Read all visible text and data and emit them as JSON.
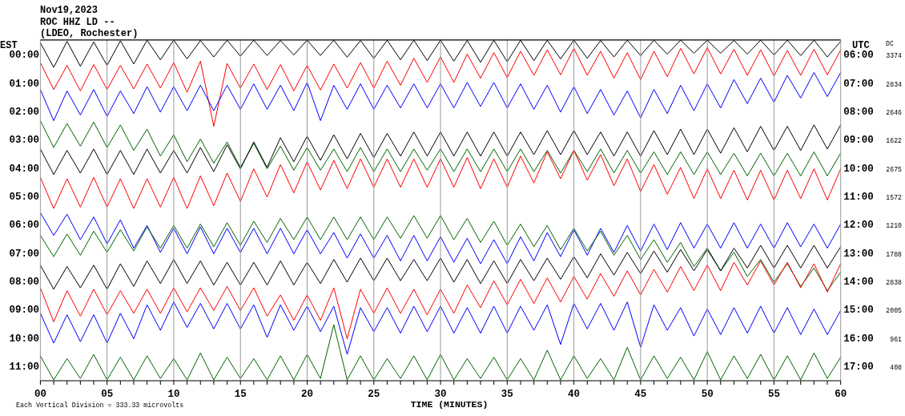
{
  "chart_data": {
    "type": "line",
    "title": "Nov19,2023",
    "subtitle": "ROC HHZ LD --",
    "xlabel": "TIME (MINUTES)",
    "ylabel": "EST",
    "y2label": "UTC",
    "annotations": [
      "(LDEO, Rochester)",
      "Each Vertical Division = 333.33 microvolts",
      "DC",
      "3374",
      "2834",
      "2646",
      "1622",
      "2675",
      "1572",
      "1210",
      "1788",
      "2838",
      "2005",
      "961",
      "408"
    ],
    "x": [
      0,
      1,
      2,
      3,
      4,
      5,
      6,
      7,
      8,
      9,
      10,
      11,
      12,
      13,
      14,
      15,
      16,
      17,
      18,
      19,
      20,
      21,
      22,
      23,
      24,
      25,
      26,
      27,
      28,
      29,
      30,
      31,
      32,
      33,
      34,
      35,
      36,
      37,
      38,
      39,
      40,
      41,
      42,
      43,
      44,
      45,
      46,
      47,
      48,
      49,
      50,
      51,
      52,
      53,
      54,
      55,
      56,
      57,
      58,
      59,
      60
    ],
    "xlim": [
      0,
      60
    ],
    "xticks": [
      {
        "value": 0,
        "label": "00"
      },
      {
        "value": 1,
        "label": null
      },
      {
        "value": 2,
        "label": null
      },
      {
        "value": 3,
        "label": null
      },
      {
        "value": 4,
        "label": null
      },
      {
        "value": 5,
        "label": "05"
      },
      {
        "value": 6,
        "label": null
      },
      {
        "value": 7,
        "label": null
      },
      {
        "value": 8,
        "label": null
      },
      {
        "value": 9,
        "label": null
      },
      10,
      {
        "value": 11,
        "label": null
      },
      {
        "value": 12,
        "label": null
      },
      {
        "value": 13,
        "label": null
      },
      {
        "value": 14,
        "label": null
      },
      15,
      {
        "value": 16,
        "label": null
      },
      {
        "value": 17,
        "label": null
      },
      {
        "value": 18,
        "label": null
      },
      {
        "value": 19,
        "label": null
      },
      20,
      {
        "value": 21,
        "label": null
      },
      {
        "value": 22,
        "label": null
      },
      {
        "value": 23,
        "label": null
      },
      {
        "value": 24,
        "label": null
      },
      25,
      {
        "value": 26,
        "label": null
      },
      {
        "value": 27,
        "label": null
      },
      {
        "value": 28,
        "label": null
      },
      {
        "value": 29,
        "label": null
      },
      30,
      {
        "value": 31,
        "label": null
      },
      {
        "value": 32,
        "label": null
      },
      {
        "value": 33,
        "label": null
      },
      {
        "value": 34,
        "label": null
      },
      35,
      {
        "value": 36,
        "label": null
      },
      {
        "value": 37,
        "label": null
      },
      {
        "value": 38,
        "label": null
      },
      {
        "value": 39,
        "label": null
      },
      40,
      {
        "value": 41,
        "label": null
      },
      {
        "value": 42,
        "label": null
      },
      {
        "value": 43,
        "label": null
      },
      {
        "value": 44,
        "label": null
      },
      45,
      {
        "value": 46,
        "label": null
      },
      {
        "value": 47,
        "label": null
      },
      {
        "value": 48,
        "label": null
      },
      {
        "value": 49,
        "label": null
      },
      50,
      {
        "value": 51,
        "label": null
      },
      {
        "value": 52,
        "label": null
      },
      {
        "value": 53,
        "label": null
      },
      {
        "value": 54,
        "label": null
      },
      55,
      {
        "value": 56,
        "label": null
      },
      {
        "value": 57,
        "label": null
      },
      {
        "value": 58,
        "label": null
      },
      {
        "value": 59,
        "label": null
      },
      60
    ],
    "ylim": [
      11.48,
      -0.55
    ],
    "yticks": [
      {
        "value": 0,
        "label": "00:00"
      },
      {
        "value": 1,
        "label": "01:00"
      },
      {
        "value": 2,
        "label": "02:00"
      },
      {
        "value": 3,
        "label": "03:00"
      },
      {
        "value": 4,
        "label": "04:00"
      },
      {
        "value": 5,
        "label": "05:00"
      },
      {
        "value": 6,
        "label": "06:00"
      },
      {
        "value": 7,
        "label": "07:00"
      },
      {
        "value": 8,
        "label": "08:00"
      },
      {
        "value": 9,
        "label": "09:00"
      },
      {
        "value": 10,
        "label": "10:00"
      },
      {
        "value": 11,
        "label": "11:00"
      }
    ],
    "y2lim": [
      17.48,
      5.45
    ],
    "y2ticks": [
      {
        "value": 6,
        "label": "06:00"
      },
      {
        "value": 7,
        "label": "07:00"
      },
      {
        "value": 8,
        "label": "08:00"
      },
      {
        "value": 9,
        "label": "09:00"
      },
      {
        "value": 10,
        "label": "10:00"
      },
      {
        "value": 11,
        "label": "11:00"
      },
      {
        "value": 12,
        "label": "12:00"
      },
      {
        "value": 13,
        "label": "13:00"
      },
      {
        "value": 14,
        "label": "14:00"
      },
      {
        "value": 15,
        "label": "15:00"
      },
      {
        "value": 16,
        "label": "16:00"
      },
      {
        "value": 17,
        "label": "17:00"
      }
    ],
    "grid": "x",
    "series": [
      {
        "color": "#000000",
        "values": [
          -0.45,
          0.42,
          -0.5,
          0.38,
          -0.48,
          0.35,
          -0.52,
          0.3,
          -0.54,
          0.15,
          -0.54,
          0.12,
          -0.53,
          0.05,
          -0.54,
          0.02,
          -0.54,
          0,
          -0.53,
          -0.02,
          -0.54,
          0,
          -0.54,
          0.06,
          -0.53,
          0.1,
          -0.54,
          0.15,
          -0.54,
          0.18,
          -0.54,
          0.2,
          -0.53,
          0.24,
          -0.54,
          0.22,
          -0.54,
          0.18,
          -0.54,
          0.12,
          -0.54,
          0.1,
          -0.53,
          0.05,
          -0.54,
          0,
          -0.54,
          -0.05,
          -0.54,
          -0.08,
          -0.54,
          -0.08,
          -0.53,
          -0.05,
          -0.54,
          -0.02,
          -0.54,
          0,
          -0.54,
          0.05,
          -0.5
        ]
      },
      {
        "color": "#ff0000",
        "values": [
          0.25,
          1.2,
          0.35,
          1.25,
          0.32,
          1.2,
          0.35,
          1.18,
          0.3,
          1.15,
          0.25,
          1.3,
          0.2,
          2.5,
          0.28,
          1.15,
          0.3,
          1.2,
          0.32,
          1.25,
          0.35,
          1.22,
          0.3,
          1.15,
          0.25,
          1.15,
          0.2,
          1.05,
          0.1,
          0.95,
          0.05,
          0.95,
          -0.05,
          0.8,
          -0.1,
          0.78,
          -0.15,
          0.7,
          -0.2,
          0.68,
          -0.25,
          0.7,
          -0.15,
          0.8,
          -0.1,
          0.85,
          -0.15,
          0.75,
          -0.25,
          0.65,
          -0.28,
          0.65,
          -0.22,
          0.7,
          -0.2,
          0.72,
          -0.18,
          0.7,
          -0.22,
          0.68,
          -0.2
        ]
      },
      {
        "color": "#0000ff",
        "values": [
          1.2,
          2.3,
          1.25,
          2.1,
          1.2,
          2.15,
          1.25,
          2.05,
          1.1,
          2.0,
          1.1,
          1.95,
          1.05,
          1.95,
          1.05,
          1.9,
          1.0,
          1.9,
          1.05,
          1.95,
          0.95,
          2.3,
          1.05,
          1.9,
          1.0,
          1.9,
          1.05,
          1.85,
          1.0,
          1.85,
          1.0,
          1.85,
          0.95,
          1.8,
          0.95,
          1.85,
          1.0,
          1.9,
          1.05,
          2.0,
          1.1,
          2.05,
          1.2,
          2.1,
          1.25,
          2.2,
          1.2,
          2.05,
          1.05,
          1.95,
          1.0,
          1.85,
          0.85,
          1.7,
          0.8,
          1.65,
          0.7,
          1.5,
          0.6,
          1.45,
          0.6
        ]
      },
      {
        "color": "#006400",
        "values": [
          2.3,
          3.25,
          2.4,
          3.2,
          2.35,
          3.25,
          2.45,
          3.35,
          2.6,
          3.55,
          2.8,
          3.75,
          2.95,
          3.8,
          3.05,
          3.95,
          3.1,
          4.0,
          3.2,
          4.05,
          3.25,
          4.05,
          3.3,
          4.1,
          3.25,
          4.1,
          3.3,
          4.1,
          3.3,
          4.05,
          3.3,
          4.1,
          3.3,
          4.1,
          3.3,
          4.1,
          3.3,
          4.1,
          3.35,
          4.15,
          3.35,
          4.1,
          3.3,
          4.15,
          3.35,
          4.15,
          3.4,
          4.2,
          3.4,
          4.2,
          3.4,
          4.2,
          3.45,
          4.25,
          3.45,
          4.25,
          3.45,
          4.25,
          3.4,
          4.25,
          3.45
        ]
      },
      {
        "color": "#000000",
        "values": [
          3.3,
          4.2,
          3.35,
          4.15,
          3.3,
          4.2,
          3.35,
          4.2,
          3.3,
          4.15,
          3.35,
          4.15,
          3.25,
          4.1,
          3.15,
          4.0,
          3.05,
          3.95,
          2.9,
          3.75,
          2.85,
          3.7,
          2.8,
          3.65,
          2.75,
          3.6,
          2.75,
          3.55,
          2.7,
          3.55,
          2.7,
          3.55,
          2.7,
          3.55,
          2.7,
          3.55,
          2.7,
          3.5,
          2.65,
          3.5,
          2.65,
          3.5,
          2.7,
          3.55,
          2.7,
          3.55,
          2.65,
          3.5,
          2.6,
          3.5,
          2.6,
          3.45,
          2.55,
          3.4,
          2.5,
          3.35,
          2.5,
          3.35,
          2.45,
          3.3,
          2.45
        ]
      },
      {
        "color": "#ff0000",
        "values": [
          4.3,
          5.4,
          4.35,
          5.35,
          4.3,
          5.35,
          4.35,
          5.4,
          4.35,
          5.35,
          4.3,
          5.4,
          4.25,
          5.3,
          4.15,
          5.15,
          4.0,
          5.0,
          3.85,
          4.85,
          3.75,
          4.75,
          3.7,
          4.7,
          3.65,
          4.65,
          3.65,
          4.65,
          3.65,
          4.65,
          3.65,
          4.65,
          3.6,
          4.7,
          3.65,
          4.65,
          3.55,
          4.5,
          3.4,
          4.35,
          3.35,
          4.4,
          3.5,
          4.6,
          3.65,
          4.8,
          3.85,
          4.9,
          3.95,
          5.05,
          4.0,
          5.05,
          4.05,
          5.1,
          4.05,
          5.1,
          4.05,
          5.05,
          4.0,
          5.1,
          4.0
        ]
      },
      {
        "color": "#0000ff",
        "values": [
          5.55,
          6.35,
          5.6,
          6.5,
          5.7,
          6.65,
          5.8,
          6.8,
          6.0,
          6.95,
          6.1,
          7.0,
          6.05,
          7.0,
          6.1,
          6.95,
          6.1,
          7.0,
          6.1,
          7.0,
          6.15,
          7.0,
          6.25,
          7.15,
          6.3,
          7.15,
          6.35,
          7.25,
          6.35,
          7.25,
          6.4,
          7.3,
          6.45,
          7.35,
          6.5,
          7.35,
          6.4,
          7.25,
          6.25,
          7.1,
          6.15,
          7.05,
          6.1,
          6.95,
          6.0,
          6.9,
          5.95,
          6.85,
          5.9,
          6.8,
          5.95,
          6.8,
          5.9,
          6.8,
          5.95,
          6.8,
          5.9,
          6.75,
          5.95,
          6.8,
          5.95
        ]
      },
      {
        "color": "#006400",
        "values": [
          6.35,
          7.1,
          6.3,
          7.05,
          6.2,
          6.95,
          6.15,
          6.9,
          6.05,
          6.8,
          6.0,
          6.8,
          5.95,
          6.75,
          5.9,
          6.7,
          5.85,
          6.6,
          5.75,
          6.5,
          5.7,
          6.5,
          5.7,
          6.5,
          5.7,
          6.5,
          5.7,
          6.45,
          5.65,
          6.45,
          5.65,
          6.5,
          5.75,
          6.6,
          5.85,
          6.7,
          5.95,
          6.75,
          6.0,
          6.85,
          6.1,
          6.9,
          6.2,
          7.05,
          6.35,
          7.2,
          6.5,
          7.3,
          6.6,
          7.45,
          6.8,
          7.6,
          6.95,
          7.8,
          7.2,
          8.0,
          7.35,
          8.15,
          7.5,
          8.3,
          7.65
        ]
      },
      {
        "color": "#000000",
        "values": [
          7.4,
          8.25,
          7.45,
          8.2,
          7.4,
          8.25,
          7.35,
          8.15,
          7.25,
          8.05,
          7.2,
          8.05,
          7.25,
          8.1,
          7.3,
          8.1,
          7.3,
          8.1,
          7.25,
          8.1,
          7.3,
          8.05,
          7.2,
          8.0,
          7.15,
          7.95,
          7.15,
          7.95,
          7.2,
          7.95,
          7.15,
          8.0,
          7.2,
          8.05,
          7.25,
          8.05,
          7.2,
          7.95,
          7.15,
          7.9,
          7.1,
          7.85,
          7.0,
          7.75,
          6.95,
          7.7,
          6.9,
          7.65,
          6.85,
          7.6,
          6.85,
          7.6,
          6.8,
          7.5,
          6.7,
          7.5,
          6.7,
          7.5,
          6.7,
          7.5,
          6.75
        ]
      },
      {
        "color": "#ff0000",
        "values": [
          8.2,
          9.4,
          8.3,
          9.2,
          8.25,
          9.15,
          8.3,
          9.1,
          8.25,
          9.1,
          8.2,
          9.05,
          8.2,
          9.0,
          8.15,
          9.0,
          8.2,
          9.2,
          8.45,
          9.35,
          8.45,
          9.35,
          8.2,
          10.0,
          8.25,
          9.1,
          8.2,
          9.1,
          8.25,
          9.15,
          8.25,
          9.1,
          8.1,
          8.9,
          7.95,
          8.8,
          7.9,
          8.75,
          7.85,
          8.7,
          7.8,
          8.6,
          7.7,
          8.5,
          7.6,
          8.45,
          7.55,
          8.35,
          7.45,
          8.3,
          7.4,
          8.3,
          7.3,
          8.1,
          7.25,
          8.1,
          7.3,
          8.2,
          7.35,
          8.35,
          7.35
        ]
      },
      {
        "color": "#0000ff",
        "values": [
          9.1,
          10.15,
          9.15,
          10.1,
          9.15,
          10.15,
          9.1,
          10.0,
          8.8,
          9.7,
          8.7,
          9.6,
          8.75,
          9.65,
          8.75,
          9.65,
          8.8,
          9.95,
          8.8,
          9.7,
          8.85,
          9.75,
          8.85,
          10.55,
          8.9,
          9.75,
          8.9,
          9.8,
          8.85,
          9.75,
          8.85,
          9.8,
          8.9,
          9.8,
          8.85,
          9.8,
          8.85,
          9.7,
          8.8,
          10.2,
          8.75,
          9.65,
          8.75,
          9.7,
          8.7,
          10.3,
          8.8,
          9.7,
          8.9,
          9.9,
          8.95,
          9.85,
          8.9,
          9.8,
          8.85,
          9.8,
          8.9,
          9.85,
          8.95,
          9.85,
          9.0
        ]
      },
      {
        "color": "#006400",
        "values": [
          10.6,
          11.45,
          10.7,
          11.4,
          10.55,
          11.45,
          10.65,
          11.45,
          10.6,
          11.4,
          10.7,
          11.45,
          10.5,
          11.45,
          10.65,
          11.4,
          10.7,
          11.45,
          10.6,
          11.45,
          10.55,
          11.4,
          9.5,
          11.45,
          10.6,
          11.45,
          10.7,
          11.4,
          10.6,
          11.45,
          10.55,
          11.45,
          10.7,
          11.4,
          10.65,
          11.45,
          10.7,
          11.45,
          10.4,
          11.45,
          10.6,
          11.4,
          10.7,
          11.45,
          10.3,
          11.45,
          10.6,
          11.4,
          10.65,
          11.45,
          10.45,
          11.45,
          10.6,
          11.4,
          10.55,
          11.45,
          10.6,
          11.45,
          10.5,
          11.4,
          10.65
        ]
      }
    ]
  }
}
